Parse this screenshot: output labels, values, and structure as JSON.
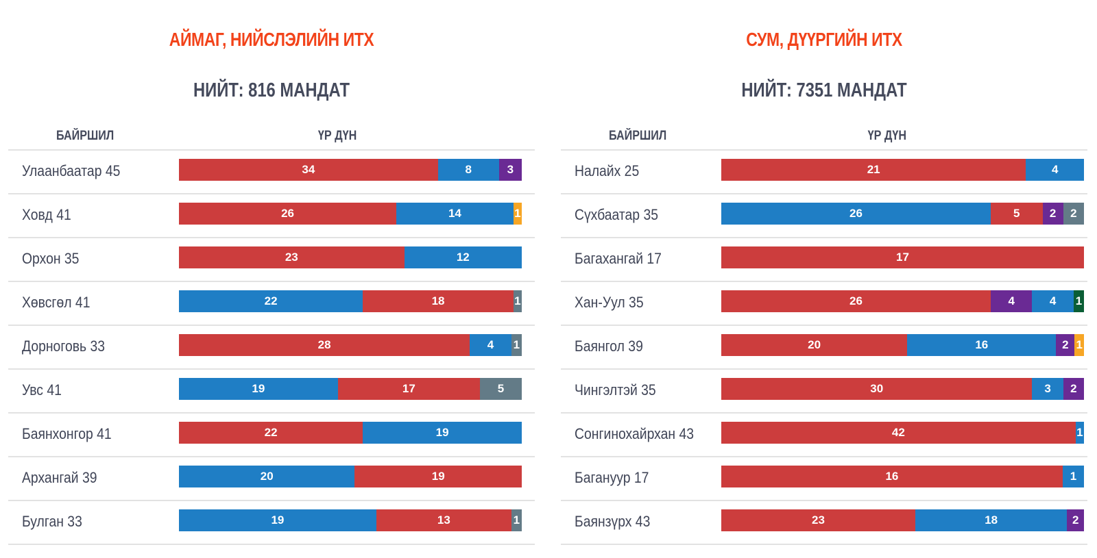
{
  "colors": {
    "red": "#cc3d3d",
    "blue": "#1f7ec5",
    "purple": "#6a2a94",
    "gray": "#637b87",
    "orange": "#f7a625",
    "green": "#0a5e35",
    "title": "#f2431a",
    "text": "#454a5c"
  },
  "left": {
    "title": "АЙМАГ, НИЙСЛЭЛИЙН ИТХ",
    "total": "НИЙТ: 816 МАНДАТ",
    "col_location": "БАЙРШИЛ",
    "col_result": "ҮР ДҮН",
    "rows": [
      {
        "label": "Улаанбаатар 45",
        "segments": [
          {
            "v": 34,
            "c": "red"
          },
          {
            "v": 8,
            "c": "blue"
          },
          {
            "v": 3,
            "c": "purple"
          }
        ]
      },
      {
        "label": "Ховд 41",
        "segments": [
          {
            "v": 26,
            "c": "red"
          },
          {
            "v": 14,
            "c": "blue"
          },
          {
            "v": 1,
            "c": "orange"
          }
        ]
      },
      {
        "label": "Орхон 35",
        "segments": [
          {
            "v": 23,
            "c": "red"
          },
          {
            "v": 12,
            "c": "blue"
          }
        ]
      },
      {
        "label": "Хөвсгөл 41",
        "segments": [
          {
            "v": 22,
            "c": "blue"
          },
          {
            "v": 18,
            "c": "red"
          },
          {
            "v": 1,
            "c": "gray"
          }
        ]
      },
      {
        "label": "Дорноговь 33",
        "segments": [
          {
            "v": 28,
            "c": "red"
          },
          {
            "v": 4,
            "c": "blue"
          },
          {
            "v": 1,
            "c": "gray"
          }
        ]
      },
      {
        "label": "Увс 41",
        "segments": [
          {
            "v": 19,
            "c": "blue"
          },
          {
            "v": 17,
            "c": "red"
          },
          {
            "v": 5,
            "c": "gray"
          }
        ]
      },
      {
        "label": "Баянхонгор 41",
        "segments": [
          {
            "v": 22,
            "c": "red"
          },
          {
            "v": 19,
            "c": "blue"
          }
        ]
      },
      {
        "label": "Архангай 39",
        "segments": [
          {
            "v": 20,
            "c": "blue"
          },
          {
            "v": 19,
            "c": "red"
          }
        ]
      },
      {
        "label": "Булган 33",
        "segments": [
          {
            "v": 19,
            "c": "blue"
          },
          {
            "v": 13,
            "c": "red"
          },
          {
            "v": 1,
            "c": "gray"
          }
        ]
      }
    ]
  },
  "right": {
    "title": "СУМ, ДҮҮРГИЙН ИТХ",
    "total": "НИЙТ: 7351 МАНДАТ",
    "col_location": "БАЙРШИЛ",
    "col_result": "ҮР ДҮН",
    "rows": [
      {
        "label": "Налайх 25",
        "segments": [
          {
            "v": 21,
            "c": "red"
          },
          {
            "v": 4,
            "c": "blue"
          }
        ]
      },
      {
        "label": "Сүхбаатар 35",
        "segments": [
          {
            "v": 26,
            "c": "blue"
          },
          {
            "v": 5,
            "c": "red"
          },
          {
            "v": 2,
            "c": "purple"
          },
          {
            "v": 2,
            "c": "gray"
          }
        ]
      },
      {
        "label": "Багахангай 17",
        "segments": [
          {
            "v": 17,
            "c": "red"
          }
        ]
      },
      {
        "label": "Хан-Уул 35",
        "segments": [
          {
            "v": 26,
            "c": "red"
          },
          {
            "v": 4,
            "c": "purple"
          },
          {
            "v": 4,
            "c": "blue"
          },
          {
            "v": 1,
            "c": "green"
          }
        ]
      },
      {
        "label": "Баянгол 39",
        "segments": [
          {
            "v": 20,
            "c": "red"
          },
          {
            "v": 16,
            "c": "blue"
          },
          {
            "v": 2,
            "c": "purple"
          },
          {
            "v": 1,
            "c": "orange"
          }
        ]
      },
      {
        "label": "Чингэлтэй 35",
        "segments": [
          {
            "v": 30,
            "c": "red"
          },
          {
            "v": 3,
            "c": "blue"
          },
          {
            "v": 2,
            "c": "purple"
          }
        ]
      },
      {
        "label": "Сонгинохайрхан 43",
        "segments": [
          {
            "v": 42,
            "c": "red"
          },
          {
            "v": 1,
            "c": "blue"
          }
        ]
      },
      {
        "label": "Багануур 17",
        "segments": [
          {
            "v": 16,
            "c": "red"
          },
          {
            "v": 1,
            "c": "blue"
          }
        ]
      },
      {
        "label": "Баянзүрх 43",
        "segments": [
          {
            "v": 23,
            "c": "red"
          },
          {
            "v": 18,
            "c": "blue"
          },
          {
            "v": 2,
            "c": "purple"
          }
        ]
      }
    ]
  },
  "chart_data": [
    {
      "type": "bar",
      "orientation": "horizontal-stacked",
      "title": "АЙМАГ, НИЙСЛЭЛИЙН ИТХ",
      "subtitle": "НИЙТ: 816 МАНДАТ",
      "xlabel": "ҮР ДҮН",
      "ylabel": "БАЙРШИЛ",
      "categories": [
        "Улаанбаатар 45",
        "Ховд 41",
        "Орхон 35",
        "Хөвсгөл 41",
        "Дорноговь 33",
        "Увс 41",
        "Баянхонгор 41",
        "Архангай 39",
        "Булган 33"
      ],
      "series": [
        {
          "name": "red",
          "color": "#cc3d3d",
          "values": [
            34,
            26,
            23,
            18,
            28,
            17,
            22,
            19,
            13
          ]
        },
        {
          "name": "blue",
          "color": "#1f7ec5",
          "values": [
            8,
            14,
            12,
            22,
            4,
            19,
            19,
            20,
            19
          ]
        },
        {
          "name": "purple",
          "color": "#6a2a94",
          "values": [
            3,
            0,
            0,
            0,
            0,
            0,
            0,
            0,
            0
          ]
        },
        {
          "name": "gray",
          "color": "#637b87",
          "values": [
            0,
            0,
            0,
            1,
            1,
            5,
            0,
            0,
            1
          ]
        },
        {
          "name": "orange",
          "color": "#f7a625",
          "values": [
            0,
            1,
            0,
            0,
            0,
            0,
            0,
            0,
            0
          ]
        }
      ]
    },
    {
      "type": "bar",
      "orientation": "horizontal-stacked",
      "title": "СУМ, ДҮҮРГИЙН ИТХ",
      "subtitle": "НИЙТ: 7351 МАНДАТ",
      "xlabel": "ҮР ДҮН",
      "ylabel": "БАЙРШИЛ",
      "categories": [
        "Налайх 25",
        "Сүхбаатар 35",
        "Багахангай 17",
        "Хан-Уул 35",
        "Баянгол 39",
        "Чингэлтэй 35",
        "Сонгинохайрхан 43",
        "Багануур 17",
        "Баянзүрх 43"
      ],
      "series": [
        {
          "name": "red",
          "color": "#cc3d3d",
          "values": [
            21,
            5,
            17,
            26,
            20,
            30,
            42,
            16,
            23
          ]
        },
        {
          "name": "blue",
          "color": "#1f7ec5",
          "values": [
            4,
            26,
            0,
            4,
            16,
            3,
            1,
            1,
            18
          ]
        },
        {
          "name": "purple",
          "color": "#6a2a94",
          "values": [
            0,
            2,
            0,
            4,
            2,
            2,
            0,
            0,
            2
          ]
        },
        {
          "name": "gray",
          "color": "#637b87",
          "values": [
            0,
            2,
            0,
            0,
            0,
            0,
            0,
            0,
            0
          ]
        },
        {
          "name": "orange",
          "color": "#f7a625",
          "values": [
            0,
            0,
            0,
            0,
            1,
            0,
            0,
            0,
            0
          ]
        },
        {
          "name": "green",
          "color": "#0a5e35",
          "values": [
            0,
            0,
            0,
            1,
            0,
            0,
            0,
            0,
            0
          ]
        }
      ]
    }
  ]
}
